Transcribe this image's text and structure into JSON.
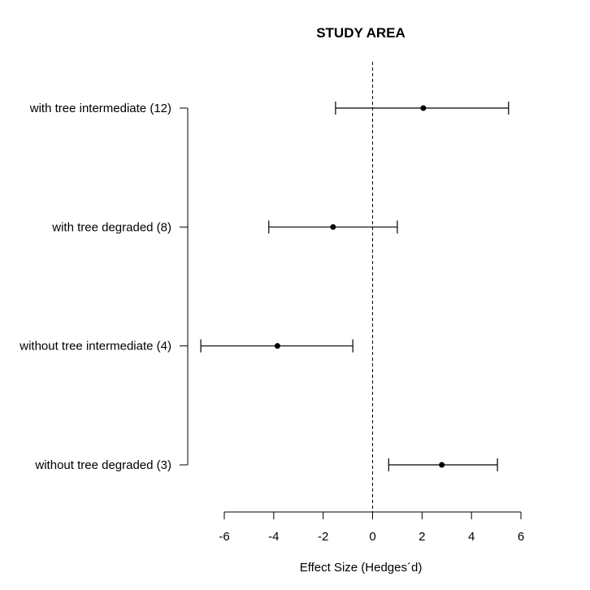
{
  "chart_data": {
    "type": "forest",
    "title": "STUDY AREA",
    "xlabel": "Effect Size (Hedges´d)",
    "ylabel": "",
    "xlim": [
      -6,
      6
    ],
    "xticks": [
      "-6",
      "-4",
      "-2",
      "0",
      "2",
      "4",
      "6"
    ],
    "reference_line": 0,
    "categories": [
      "with tree intermediate (12)",
      "with tree degraded (8)",
      "without tree intermediate (4)",
      "without tree degraded (3)"
    ],
    "estimates": [
      2.05,
      -1.6,
      -3.85,
      2.8
    ],
    "ci_lower": [
      -1.5,
      -4.2,
      -6.95,
      0.65
    ],
    "ci_upper": [
      5.5,
      1.0,
      -0.8,
      5.05
    ]
  }
}
